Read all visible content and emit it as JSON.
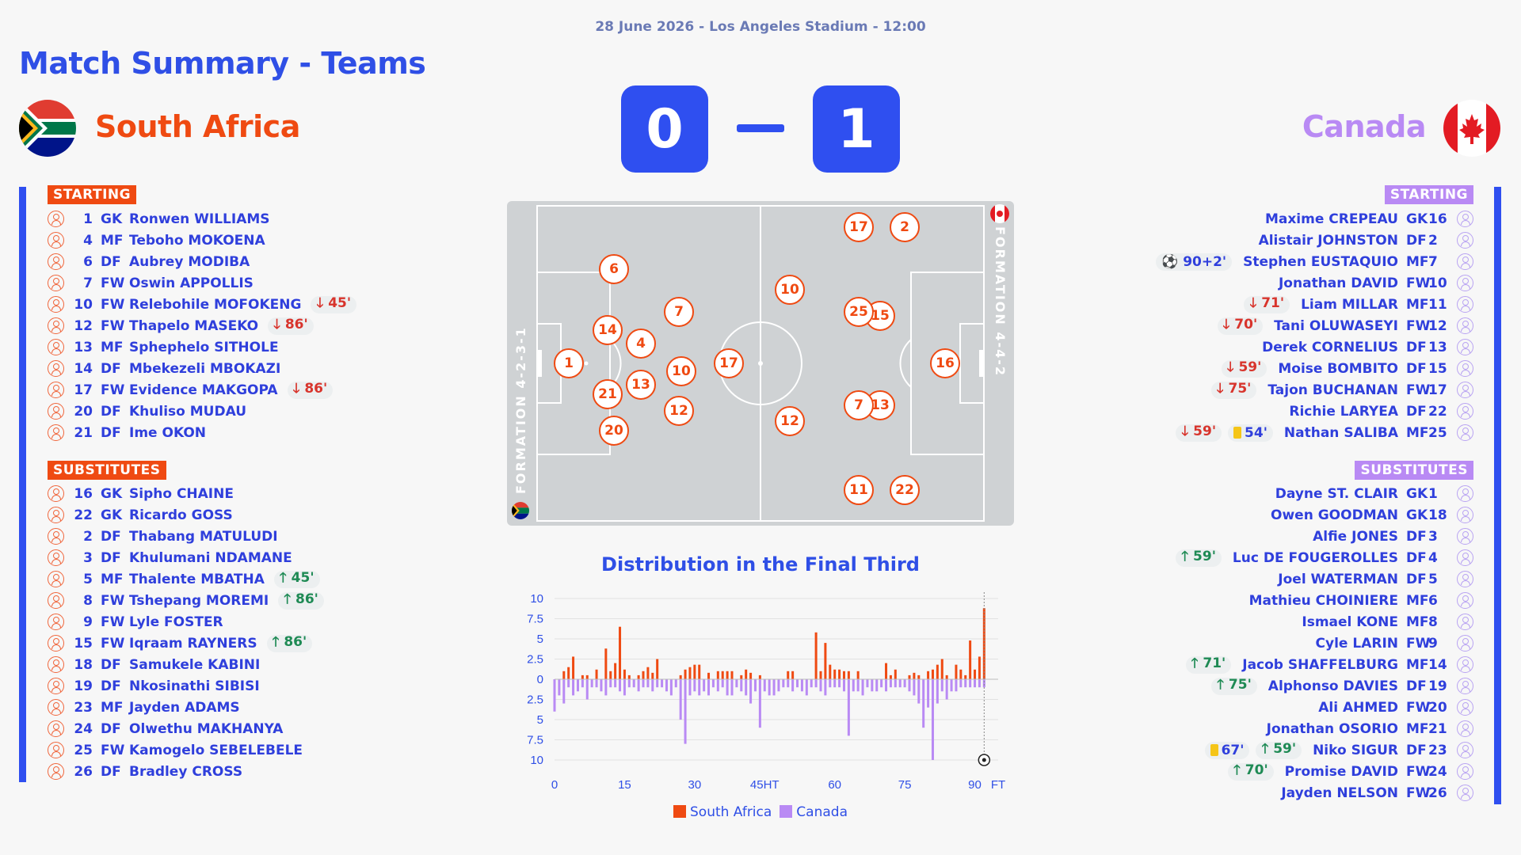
{
  "header": {
    "meta": "28 June 2026 - Los Angeles Stadium - 12:00",
    "title": "Match Summary - Teams"
  },
  "colors": {
    "home": "#ef4a12",
    "away": "#b98af4",
    "accent": "#2f4ff0"
  },
  "score": {
    "home": "0",
    "away": "1"
  },
  "home": {
    "name": "South Africa",
    "formation": "FORMATION 4-2-3-1",
    "starting_label": "STARTING",
    "subs_label": "SUBSTITUTES",
    "starting": [
      {
        "num": "1",
        "pos": "GK",
        "name": "Ronwen WILLIAMS",
        "events": []
      },
      {
        "num": "4",
        "pos": "MF",
        "name": "Teboho MOKOENA",
        "events": []
      },
      {
        "num": "6",
        "pos": "DF",
        "name": "Aubrey MODIBA",
        "events": []
      },
      {
        "num": "7",
        "pos": "FW",
        "name": "Oswin APPOLLIS",
        "events": []
      },
      {
        "num": "10",
        "pos": "FW",
        "name": "Relebohile MOFOKENG",
        "events": [
          {
            "type": "off",
            "label": "🡓 45'"
          }
        ]
      },
      {
        "num": "12",
        "pos": "FW",
        "name": "Thapelo MASEKO",
        "events": [
          {
            "type": "off",
            "label": "🡓 86'"
          }
        ]
      },
      {
        "num": "13",
        "pos": "MF",
        "name": "Sphephelo SITHOLE",
        "events": []
      },
      {
        "num": "14",
        "pos": "DF",
        "name": "Mbekezeli MBOKAZI",
        "events": []
      },
      {
        "num": "17",
        "pos": "FW",
        "name": "Evidence MAKGOPA",
        "events": [
          {
            "type": "off",
            "label": "🡓 86'"
          }
        ]
      },
      {
        "num": "20",
        "pos": "DF",
        "name": "Khuliso MUDAU",
        "events": []
      },
      {
        "num": "21",
        "pos": "DF",
        "name": "Ime OKON",
        "events": []
      }
    ],
    "subs": [
      {
        "num": "16",
        "pos": "GK",
        "name": "Sipho CHAINE",
        "events": []
      },
      {
        "num": "22",
        "pos": "GK",
        "name": "Ricardo GOSS",
        "events": []
      },
      {
        "num": "2",
        "pos": "DF",
        "name": "Thabang MATULUDI",
        "events": []
      },
      {
        "num": "3",
        "pos": "DF",
        "name": "Khulumani NDAMANE",
        "events": []
      },
      {
        "num": "5",
        "pos": "MF",
        "name": "Thalente MBATHA",
        "events": [
          {
            "type": "on",
            "label": "🡑 45'"
          }
        ]
      },
      {
        "num": "8",
        "pos": "FW",
        "name": "Tshepang MOREMI",
        "events": [
          {
            "type": "on",
            "label": "🡑 86'"
          }
        ]
      },
      {
        "num": "9",
        "pos": "FW",
        "name": "Lyle FOSTER",
        "events": []
      },
      {
        "num": "15",
        "pos": "FW",
        "name": "Iqraam RAYNERS",
        "events": [
          {
            "type": "on",
            "label": "🡑 86'"
          }
        ]
      },
      {
        "num": "18",
        "pos": "DF",
        "name": "Samukele KABINI",
        "events": []
      },
      {
        "num": "19",
        "pos": "DF",
        "name": "Nkosinathi SIBISI",
        "events": []
      },
      {
        "num": "23",
        "pos": "MF",
        "name": "Jayden ADAMS",
        "events": []
      },
      {
        "num": "24",
        "pos": "DF",
        "name": "Olwethu MAKHANYA",
        "events": []
      },
      {
        "num": "25",
        "pos": "FW",
        "name": "Kamogelo SEBELEBELE",
        "events": []
      },
      {
        "num": "26",
        "pos": "DF",
        "name": "Bradley CROSS",
        "events": []
      }
    ],
    "pitch": [
      "1",
      "6",
      "14",
      "4",
      "21",
      "13",
      "20",
      "7",
      "10",
      "12",
      "17"
    ]
  },
  "away": {
    "name": "Canada",
    "formation": "FORMATION 4-4-2",
    "starting_label": "STARTING",
    "subs_label": "SUBSTITUTES",
    "starting": [
      {
        "num": "16",
        "pos": "GK",
        "name": "Maxime CREPEAU",
        "events": []
      },
      {
        "num": "2",
        "pos": "DF",
        "name": "Alistair JOHNSTON",
        "events": []
      },
      {
        "num": "7",
        "pos": "MF",
        "name": "Stephen EUSTAQUIO",
        "events": [
          {
            "type": "goal",
            "label": "⚽ 90+2'"
          }
        ]
      },
      {
        "num": "10",
        "pos": "FW",
        "name": "Jonathan DAVID",
        "events": []
      },
      {
        "num": "11",
        "pos": "MF",
        "name": "Liam MILLAR",
        "events": [
          {
            "type": "off",
            "label": "🡓 71'"
          }
        ]
      },
      {
        "num": "12",
        "pos": "FW",
        "name": "Tani OLUWASEYI",
        "events": [
          {
            "type": "off",
            "label": "🡓 70'"
          }
        ]
      },
      {
        "num": "13",
        "pos": "DF",
        "name": "Derek CORNELIUS",
        "events": []
      },
      {
        "num": "15",
        "pos": "DF",
        "name": "Moise BOMBITO",
        "events": [
          {
            "type": "off",
            "label": "🡓 59'"
          }
        ]
      },
      {
        "num": "17",
        "pos": "FW",
        "name": "Tajon BUCHANAN",
        "events": [
          {
            "type": "off",
            "label": "🡓 75'"
          }
        ]
      },
      {
        "num": "22",
        "pos": "DF",
        "name": "Richie LARYEA",
        "events": []
      },
      {
        "num": "25",
        "pos": "MF",
        "name": "Nathan SALIBA",
        "events": [
          {
            "type": "off",
            "label": "🡓 59'"
          },
          {
            "type": "yellow",
            "label": "54'"
          }
        ]
      }
    ],
    "subs": [
      {
        "num": "1",
        "pos": "GK",
        "name": "Dayne ST. CLAIR",
        "events": []
      },
      {
        "num": "18",
        "pos": "GK",
        "name": "Owen GOODMAN",
        "events": []
      },
      {
        "num": "3",
        "pos": "DF",
        "name": "Alfie JONES",
        "events": []
      },
      {
        "num": "4",
        "pos": "DF",
        "name": "Luc DE FOUGEROLLES",
        "events": [
          {
            "type": "on",
            "label": "🡑 59'"
          }
        ]
      },
      {
        "num": "5",
        "pos": "DF",
        "name": "Joel WATERMAN",
        "events": []
      },
      {
        "num": "6",
        "pos": "MF",
        "name": "Mathieu CHOINIERE",
        "events": []
      },
      {
        "num": "8",
        "pos": "MF",
        "name": "Ismael KONE",
        "events": []
      },
      {
        "num": "9",
        "pos": "FW",
        "name": "Cyle LARIN",
        "events": []
      },
      {
        "num": "14",
        "pos": "MF",
        "name": "Jacob SHAFFELBURG",
        "events": [
          {
            "type": "on",
            "label": "🡑 71'"
          }
        ]
      },
      {
        "num": "19",
        "pos": "DF",
        "name": "Alphonso DAVIES",
        "events": [
          {
            "type": "on",
            "label": "🡑 75'"
          }
        ]
      },
      {
        "num": "20",
        "pos": "FW",
        "name": "Ali AHMED",
        "events": []
      },
      {
        "num": "21",
        "pos": "MF",
        "name": "Jonathan OSORIO",
        "events": []
      },
      {
        "num": "23",
        "pos": "DF",
        "name": "Niko SIGUR",
        "events": [
          {
            "type": "yellow",
            "label": "67'"
          },
          {
            "type": "on",
            "label": "🡑 59'"
          }
        ]
      },
      {
        "num": "24",
        "pos": "FW",
        "name": "Promise DAVID",
        "events": [
          {
            "type": "on",
            "label": "🡑 70'"
          }
        ]
      },
      {
        "num": "26",
        "pos": "FW",
        "name": "Jayden NELSON",
        "events": []
      }
    ],
    "pitch": [
      "16",
      "15",
      "13",
      "25",
      "7",
      "17",
      "2",
      "10",
      "12",
      "11",
      "22"
    ]
  },
  "chart_data": {
    "type": "bar",
    "title": "Distribution in the Final Third",
    "x_ticks": [
      "0",
      "15",
      "30",
      "45HT",
      "60",
      "75",
      "90",
      "FT"
    ],
    "y_ticks": [
      "10",
      "7.5",
      "5",
      "2.5",
      "0",
      "2.5",
      "5",
      "7.5",
      "10"
    ],
    "ylim": [
      -10,
      10
    ],
    "legend": [
      "South Africa",
      "Canada"
    ],
    "goal_minute": 92,
    "series": [
      {
        "name": "South Africa",
        "x": [
          2,
          3,
          4,
          6,
          7,
          9,
          11,
          12,
          13,
          14,
          15,
          16,
          18,
          19,
          20,
          21,
          22,
          27,
          28,
          29,
          30,
          31,
          33,
          35,
          36,
          37,
          38,
          40,
          41,
          42,
          44,
          50,
          51,
          56,
          57,
          58,
          59,
          60,
          61,
          62,
          63,
          65,
          71,
          72,
          73,
          76,
          77,
          78,
          80,
          81,
          82,
          83,
          84,
          86,
          87,
          88,
          89,
          90,
          91,
          92
        ],
        "values": [
          1,
          1.5,
          2.8,
          0.5,
          0.5,
          1.2,
          3.8,
          1,
          2,
          6.5,
          1.2,
          0.5,
          0.5,
          1,
          1.5,
          0.8,
          2.5,
          0.5,
          1.2,
          1.5,
          1.8,
          1.8,
          0.8,
          1,
          1,
          1,
          1,
          0.5,
          1.2,
          0.8,
          0.5,
          1,
          1,
          5.8,
          1,
          4.5,
          1.8,
          1.2,
          1.2,
          1,
          1,
          1,
          2,
          0.5,
          1.2,
          0.5,
          0.8,
          0.5,
          1,
          1.2,
          1.8,
          2.5,
          0.5,
          1.8,
          1.2,
          0.5,
          4.8,
          1.2,
          2.8,
          8.8
        ]
      },
      {
        "name": "Canada",
        "x": [
          0,
          1,
          2,
          3,
          4,
          5,
          6,
          7,
          8,
          9,
          10,
          11,
          12,
          13,
          14,
          15,
          16,
          17,
          18,
          19,
          20,
          21,
          22,
          23,
          24,
          25,
          26,
          27,
          28,
          29,
          30,
          31,
          32,
          33,
          34,
          35,
          36,
          37,
          38,
          39,
          40,
          41,
          42,
          43,
          44,
          45,
          46,
          47,
          48,
          49,
          50,
          51,
          52,
          53,
          54,
          55,
          56,
          57,
          58,
          59,
          60,
          61,
          62,
          63,
          64,
          65,
          66,
          67,
          68,
          69,
          70,
          71,
          72,
          73,
          74,
          75,
          76,
          77,
          78,
          79,
          80,
          81,
          82,
          83,
          84,
          85,
          86,
          87,
          88,
          89,
          90,
          91,
          92
        ],
        "values": [
          -4,
          -2,
          -3,
          -1,
          -2,
          -1.5,
          -1,
          -2.5,
          -1,
          -1,
          -1.5,
          -2,
          -1,
          -1,
          -1.5,
          -2,
          -1,
          -1,
          -1.5,
          -1,
          -1,
          -1.5,
          -1,
          -1,
          -1.5,
          -2,
          -1,
          -5,
          -8,
          -2,
          -1.5,
          -2,
          -1.5,
          -2,
          -1,
          -1.5,
          -1,
          -2,
          -2,
          -1,
          -1.5,
          -2,
          -3,
          -1.5,
          -6,
          -1.5,
          -2,
          -2,
          -1.5,
          -1,
          -1,
          -1.5,
          -1,
          -1.5,
          -2,
          -1,
          -1,
          -1.5,
          -2,
          -1,
          -1,
          -1,
          -1.5,
          -7,
          -1.5,
          -1.5,
          -2,
          -1,
          -1.5,
          -1.5,
          -1,
          -1.5,
          -1,
          -1,
          -1,
          -1,
          -1.5,
          -2,
          -3,
          -6,
          -3.5,
          -10,
          -3,
          -1.5,
          -2.5,
          -1.5,
          -1.5,
          -1,
          -1,
          -1,
          -1,
          -1,
          -1
        ]
      }
    ]
  }
}
